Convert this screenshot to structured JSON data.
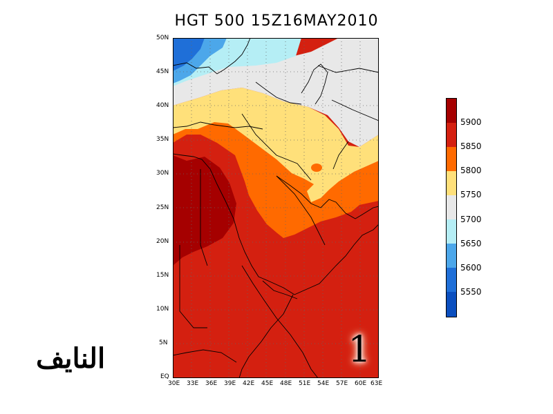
{
  "title": "HGT 500   15Z16MAY2010",
  "lat_labels": [
    "50N",
    "45N",
    "40N",
    "35N",
    "30N",
    "25N",
    "20N",
    "15N",
    "10N",
    "5N",
    "EQ"
  ],
  "lon_labels": [
    "30E",
    "33E",
    "36E",
    "39E",
    "42E",
    "45E",
    "48E",
    "51E",
    "54E",
    "57E",
    "60E",
    "63E"
  ],
  "colorbar": {
    "labels": [
      "5900",
      "5850",
      "5800",
      "5750",
      "5700",
      "5650",
      "5600",
      "5550"
    ],
    "colors": [
      "#a50000",
      "#d42010",
      "#ff6a00",
      "#ffe07a",
      "#e8e8e8",
      "#b5eef5",
      "#4ca7ea",
      "#1f6fd8",
      "#0b4fbf"
    ]
  },
  "watermark": "النايف",
  "badge": "1",
  "map_colors": {
    "darkred": "#a50000",
    "red": "#d42010",
    "orange": "#ff6a00",
    "yellow": "#ffe07a",
    "gray": "#e8e8e8",
    "lightcyan": "#b5eef5",
    "lightblue": "#4ca7ea",
    "blue": "#1f6fd8"
  }
}
